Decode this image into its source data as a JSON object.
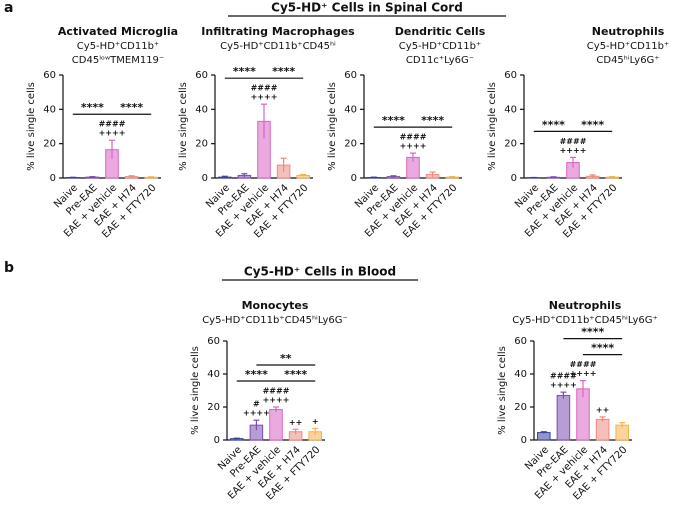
{
  "panels": [
    {
      "label": "a",
      "heading": "Cy5-HD⁺ Cells in Spinal Cord"
    },
    {
      "label": "b",
      "heading": "Cy5-HD⁺ Cells in Blood"
    }
  ],
  "chart_data": [
    {
      "type": "bar",
      "panel": 0,
      "title": "Activated Microglia",
      "subtitle": [
        "Cy5-HD⁺CD11b⁺",
        "CD45ˡᵒʷTMEM119⁻"
      ],
      "ylabel": "% live single cells",
      "categories": [
        "Naive",
        "Pre-EAE",
        "EAE + vehicle",
        "EAE + H74",
        "EAE + FTY720"
      ],
      "values": [
        0.3,
        0.5,
        16.5,
        0.8,
        0.4
      ],
      "errors": [
        0.1,
        0.3,
        5.5,
        0.5,
        0.3
      ],
      "colors": [
        "#3c3f9e",
        "#7c4db5",
        "#d865c4",
        "#ef8a80",
        "#f5b04a"
      ],
      "bar_labels": [
        null,
        null,
        [
          "####",
          "++++"
        ],
        null,
        null
      ],
      "brackets": [
        {
          "label": "****",
          "from": 0,
          "to": 2
        },
        {
          "label": "****",
          "from": 2,
          "to": 4
        }
      ],
      "ylim": [
        0,
        60
      ],
      "yticks": [
        0,
        20,
        40,
        60
      ]
    },
    {
      "type": "bar",
      "panel": 0,
      "title": "Infiltrating Macrophages",
      "subtitle": [
        "Cy5-HD⁺CD11b⁺CD45ʰⁱ"
      ],
      "ylabel": "% live single cells",
      "categories": [
        "Naive",
        "Pre-EAE",
        "EAE + vehicle",
        "EAE + H74",
        "EAE + FTY720"
      ],
      "values": [
        0.5,
        1.5,
        33,
        7.5,
        1.5
      ],
      "errors": [
        0.5,
        1,
        10,
        4,
        0.5
      ],
      "colors": [
        "#3c3f9e",
        "#7c4db5",
        "#d865c4",
        "#ef8a80",
        "#f5b04a"
      ],
      "bar_labels": [
        null,
        null,
        [
          "####",
          "++++"
        ],
        null,
        null
      ],
      "brackets": [
        {
          "label": "****",
          "from": 0,
          "to": 2
        },
        {
          "label": "****",
          "from": 2,
          "to": 4
        }
      ],
      "ylim": [
        0,
        60
      ],
      "yticks": [
        0,
        20,
        40,
        60
      ]
    },
    {
      "type": "bar",
      "panel": 0,
      "title": "Dendritic Cells",
      "subtitle": [
        "Cy5-HD⁺CD11b⁺",
        "CD11c⁺Ly6G⁻"
      ],
      "ylabel": "% live single cells",
      "categories": [
        "Naive",
        "Pre-EAE",
        "EAE + vehicle",
        "EAE + H74",
        "EAE + FTY720"
      ],
      "values": [
        0.3,
        0.8,
        12,
        2,
        0.5
      ],
      "errors": [
        0.2,
        0.5,
        2.5,
        1.5,
        0.3
      ],
      "colors": [
        "#3c3f9e",
        "#7c4db5",
        "#d865c4",
        "#ef8a80",
        "#f5b04a"
      ],
      "bar_labels": [
        null,
        null,
        [
          "####",
          "++++"
        ],
        null,
        null
      ],
      "brackets": [
        {
          "label": "****",
          "from": 0,
          "to": 2
        },
        {
          "label": "****",
          "from": 2,
          "to": 4
        }
      ],
      "ylim": [
        0,
        60
      ],
      "yticks": [
        0,
        20,
        40,
        60
      ]
    },
    {
      "type": "bar",
      "panel": 0,
      "title": "Neutrophils",
      "subtitle": [
        "Cy5-HD⁺CD11b⁺",
        "CD45ʰⁱLy6G⁺"
      ],
      "ylabel": "% live single cells",
      "categories": [
        "Naive",
        "Pre-EAE",
        "EAE + vehicle",
        "EAE + H74",
        "EAE + FTY720"
      ],
      "values": [
        0.2,
        0.4,
        9,
        1,
        0.5
      ],
      "errors": [
        0.1,
        0.3,
        3,
        0.8,
        0.3
      ],
      "colors": [
        "#3c3f9e",
        "#7c4db5",
        "#d865c4",
        "#ef8a80",
        "#f5b04a"
      ],
      "bar_labels": [
        null,
        null,
        [
          "####",
          "++++"
        ],
        null,
        null
      ],
      "brackets": [
        {
          "label": "****",
          "from": 0,
          "to": 2
        },
        {
          "label": "****",
          "from": 2,
          "to": 4
        }
      ],
      "ylim": [
        0,
        60
      ],
      "yticks": [
        0,
        20,
        40,
        60
      ]
    },
    {
      "type": "bar",
      "panel": 1,
      "title": "Monocytes",
      "subtitle": [
        "Cy5-HD⁺CD11b⁺CD45ʰⁱLy6G⁻"
      ],
      "ylabel": "% live single cells",
      "categories": [
        "Naive",
        "Pre-EAE",
        "EAE + vehicle",
        "EAE + H74",
        "EAE + FTY720"
      ],
      "values": [
        0.8,
        9,
        18.5,
        5,
        5
      ],
      "errors": [
        0.3,
        3,
        1.5,
        1.5,
        2
      ],
      "colors": [
        "#3c3f9e",
        "#7c4db5",
        "#d865c4",
        "#ef8a80",
        "#f5b04a"
      ],
      "bar_labels": [
        null,
        [
          "#",
          "++++"
        ],
        [
          "####",
          "++++"
        ],
        [
          "++"
        ],
        [
          "+"
        ]
      ],
      "brackets": [
        {
          "label": "****",
          "from": 0,
          "to": 2
        },
        {
          "label": "****",
          "from": 2,
          "to": 4
        },
        {
          "label": "**",
          "from": 1,
          "to": 4
        }
      ],
      "ylim": [
        0,
        60
      ],
      "yticks": [
        0,
        20,
        40,
        60
      ]
    },
    {
      "type": "bar",
      "panel": 1,
      "title": "Neutrophils",
      "subtitle": [
        "Cy5-HD⁺CD11b⁺CD45ʰⁱLy6G⁺"
      ],
      "ylabel": "% live single cells",
      "categories": [
        "Naive",
        "Pre-EAE",
        "EAE + vehicle",
        "EAE + H74",
        "EAE + FTY720"
      ],
      "values": [
        4.5,
        27,
        31,
        12.5,
        9
      ],
      "errors": [
        0.5,
        2,
        5,
        1.5,
        1.5
      ],
      "colors": [
        "#3c3f9e",
        "#7c4db5",
        "#d865c4",
        "#ef8a80",
        "#f5b04a"
      ],
      "bar_labels": [
        null,
        [
          "####",
          "++++"
        ],
        [
          "####",
          "++++"
        ],
        [
          "++"
        ],
        null
      ],
      "brackets": [
        {
          "label": "****",
          "from": 2,
          "to": 4
        },
        {
          "label": "****",
          "from": 1,
          "to": 4
        }
      ],
      "ylim": [
        0,
        60
      ],
      "yticks": [
        0,
        20,
        40,
        60
      ]
    }
  ]
}
